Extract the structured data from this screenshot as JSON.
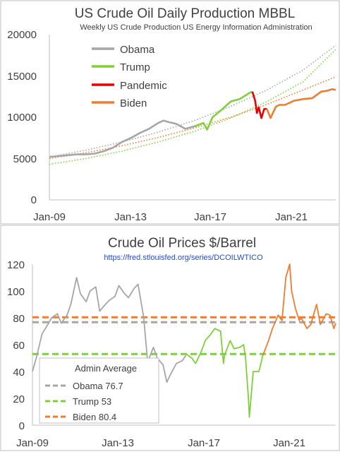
{
  "chart_data": [
    {
      "type": "line",
      "title": "US Crude Oil Daily Production MBBL",
      "subtitle": "Weekly US Crude Production US Energy Information Administration",
      "x_tick_labels": [
        "Jan-09",
        "Jan-13",
        "Jan-17",
        "Jan-21"
      ],
      "y_tick_labels": [
        "0",
        "5000",
        "10000",
        "15000",
        "20000"
      ],
      "xlim": [
        2009.0,
        2024.8
      ],
      "ylim": [
        0,
        20000
      ],
      "grid": false,
      "legend": "top-left",
      "series": [
        {
          "name": "Obama",
          "color": "#a6a6a6",
          "x": [
            2009.0,
            2009.5,
            2010.0,
            2010.5,
            2011.0,
            2011.5,
            2012.0,
            2012.5,
            2013.0,
            2013.5,
            2014.0,
            2014.5,
            2015.0,
            2015.3,
            2015.6,
            2016.0,
            2016.5,
            2017.0
          ],
          "y": [
            5200,
            5300,
            5400,
            5500,
            5500,
            5600,
            5900,
            6300,
            7000,
            7500,
            8100,
            8600,
            9300,
            9600,
            9400,
            9200,
            8600,
            8900
          ]
        },
        {
          "name": "Trump",
          "color": "#7fcf3c",
          "x": [
            2017.0,
            2017.5,
            2017.7,
            2018.0,
            2018.5,
            2019.0,
            2019.5,
            2020.0,
            2020.2
          ],
          "y": [
            8900,
            9300,
            8500,
            10000,
            10900,
            11900,
            12200,
            12900,
            13100
          ]
        },
        {
          "name": "Pandemic",
          "color": "#e60000",
          "x": [
            2020.2,
            2020.35,
            2020.45,
            2020.55,
            2020.7,
            2020.85,
            2021.0
          ],
          "y": [
            13100,
            12000,
            10500,
            11200,
            9900,
            11000,
            11000
          ]
        },
        {
          "name": "Biden",
          "color": "#ed7d31",
          "x": [
            2021.0,
            2021.2,
            2021.5,
            2021.7,
            2022.0,
            2022.5,
            2023.0,
            2023.5,
            2024.0,
            2024.3,
            2024.6,
            2024.8
          ],
          "y": [
            11000,
            9900,
            11300,
            11500,
            11500,
            12000,
            12200,
            12300,
            13100,
            13200,
            13400,
            13300
          ]
        }
      ],
      "trendlines": [
        {
          "color": "#ed7d31",
          "style": "dotted",
          "x": [
            2009,
            2011,
            2013,
            2015,
            2017,
            2019,
            2021,
            2023,
            2024.8
          ],
          "y": [
            5000,
            5700,
            6550,
            7550,
            8700,
            10000,
            11550,
            13300,
            14900
          ]
        },
        {
          "color": "#a6a6a6",
          "style": "dotted",
          "x": [
            2009,
            2011,
            2013,
            2015,
            2017,
            2019,
            2021,
            2023,
            2024.8
          ],
          "y": [
            5200,
            6000,
            7000,
            8200,
            9600,
            11300,
            13300,
            15700,
            18700
          ]
        },
        {
          "color": "#7fcf3c",
          "style": "dotted",
          "x": [
            2009,
            2011,
            2013,
            2015,
            2017,
            2019,
            2021,
            2023,
            2024.8
          ],
          "y": [
            4300,
            5000,
            5900,
            7000,
            8300,
            9900,
            11900,
            14300,
            18200
          ]
        }
      ]
    },
    {
      "type": "line",
      "title": "Crude Oil Prices $/Barrel",
      "subtitle": "https://fred.stlouisfed.org/series/DCOILWTICO",
      "x_tick_labels": [
        "Jan-09",
        "Jan-13",
        "Jan-17",
        "Jan-21"
      ],
      "y_tick_labels": [
        "0",
        "20",
        "40",
        "60",
        "80",
        "100",
        "120"
      ],
      "xlim": [
        2009.0,
        2024.8
      ],
      "ylim": [
        0,
        120
      ],
      "grid": false,
      "legend": "bottom-left",
      "legend_title": "Admin Average",
      "averages": [
        {
          "name": "Obama 76.7",
          "value": 76.7,
          "color": "#a6a6a6",
          "style": "dashed"
        },
        {
          "name": "Trump 53",
          "value": 53,
          "color": "#7fcf3c",
          "style": "dashed"
        },
        {
          "name": "Biden 80.4",
          "value": 80.4,
          "color": "#ed7d31",
          "style": "dashed"
        }
      ],
      "series": [
        {
          "name": "Obama",
          "color": "#a6a6a6",
          "x": [
            2009.0,
            2009.2,
            2009.5,
            2009.8,
            2010.0,
            2010.3,
            2010.5,
            2010.8,
            2011.0,
            2011.3,
            2011.5,
            2011.8,
            2012.0,
            2012.3,
            2012.5,
            2012.8,
            2013.0,
            2013.3,
            2013.5,
            2013.8,
            2014.0,
            2014.3,
            2014.5,
            2014.8,
            2015.0,
            2015.3,
            2015.5,
            2015.8,
            2016.0,
            2016.2,
            2016.5,
            2016.8,
            2017.0
          ],
          "y": [
            40,
            50,
            68,
            75,
            80,
            83,
            76,
            82,
            90,
            110,
            98,
            92,
            100,
            103,
            85,
            90,
            93,
            96,
            104,
            98,
            95,
            102,
            105,
            80,
            47,
            58,
            50,
            45,
            32,
            38,
            46,
            48,
            52
          ]
        },
        {
          "name": "Trump",
          "color": "#7fcf3c",
          "x": [
            2017.0,
            2017.3,
            2017.5,
            2017.8,
            2018.0,
            2018.3,
            2018.5,
            2018.8,
            2018.95,
            2019.0,
            2019.3,
            2019.5,
            2019.8,
            2020.0,
            2020.1,
            2020.25,
            2020.3,
            2020.5,
            2020.8,
            2021.0
          ],
          "y": [
            53,
            50,
            46,
            55,
            63,
            68,
            72,
            70,
            46,
            52,
            63,
            57,
            58,
            60,
            50,
            20,
            6,
            40,
            40,
            52
          ]
        },
        {
          "name": "Biden",
          "color": "#ed7d31",
          "x": [
            2021.0,
            2021.3,
            2021.5,
            2021.8,
            2022.0,
            2022.2,
            2022.4,
            2022.5,
            2022.7,
            2022.9,
            2023.0,
            2023.3,
            2023.5,
            2023.8,
            2024.0,
            2024.3,
            2024.5,
            2024.7,
            2024.8
          ],
          "y": [
            52,
            63,
            72,
            82,
            78,
            110,
            120,
            100,
            87,
            78,
            80,
            72,
            75,
            90,
            75,
            83,
            82,
            72,
            76
          ]
        }
      ]
    }
  ]
}
